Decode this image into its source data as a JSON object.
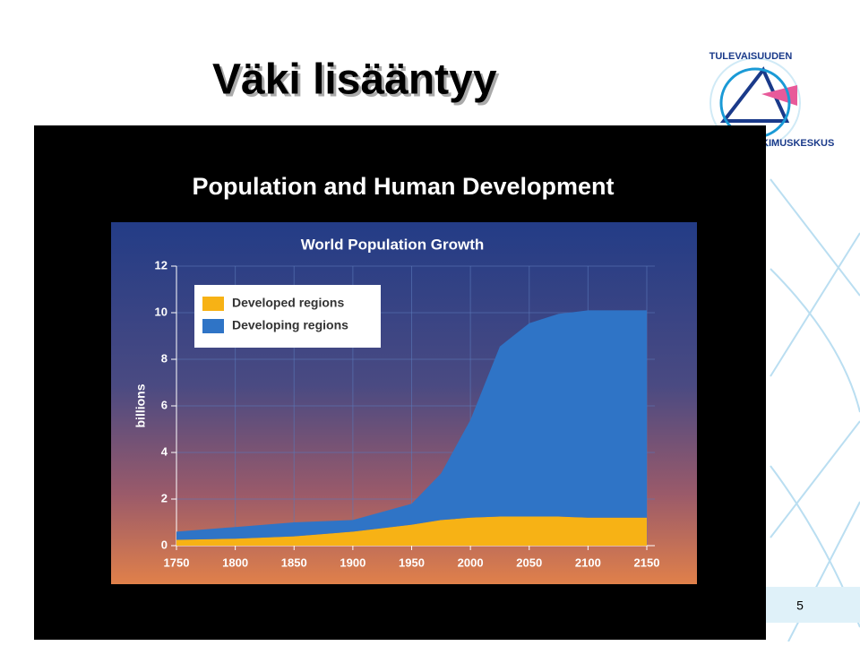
{
  "slide": {
    "title": "Väki lisääntyy",
    "page_number": "5",
    "logo_texts": [
      "TULEVAISUUDEN",
      "TUTKIMUSKESKUS"
    ]
  },
  "chart_data": {
    "type": "area",
    "stacked": true,
    "supertitle": "Population and Human Development",
    "title": "World Population Growth",
    "ylabel": "billions",
    "x": [
      1750,
      1800,
      1850,
      1900,
      1950,
      1975,
      2000,
      2025,
      2050,
      2075,
      2100,
      2150
    ],
    "series": [
      {
        "name": "Developed regions",
        "color": "#f7b215",
        "values": [
          0.25,
          0.3,
          0.4,
          0.6,
          0.9,
          1.1,
          1.2,
          1.25,
          1.25,
          1.25,
          1.2,
          1.2
        ]
      },
      {
        "name": "Developing regions",
        "color": "#2f74c6",
        "values": [
          0.35,
          0.5,
          0.6,
          0.5,
          0.9,
          2.0,
          4.2,
          7.3,
          8.3,
          8.7,
          8.9,
          8.9
        ]
      }
    ],
    "xlim": [
      1750,
      2150
    ],
    "xticks": [
      1750,
      1800,
      1850,
      1900,
      1950,
      2000,
      2050,
      2100,
      2150
    ],
    "ylim": [
      0,
      12
    ],
    "yticks": [
      0,
      2,
      4,
      6,
      8,
      10,
      12
    ],
    "grid": true,
    "legend": "upper left"
  }
}
